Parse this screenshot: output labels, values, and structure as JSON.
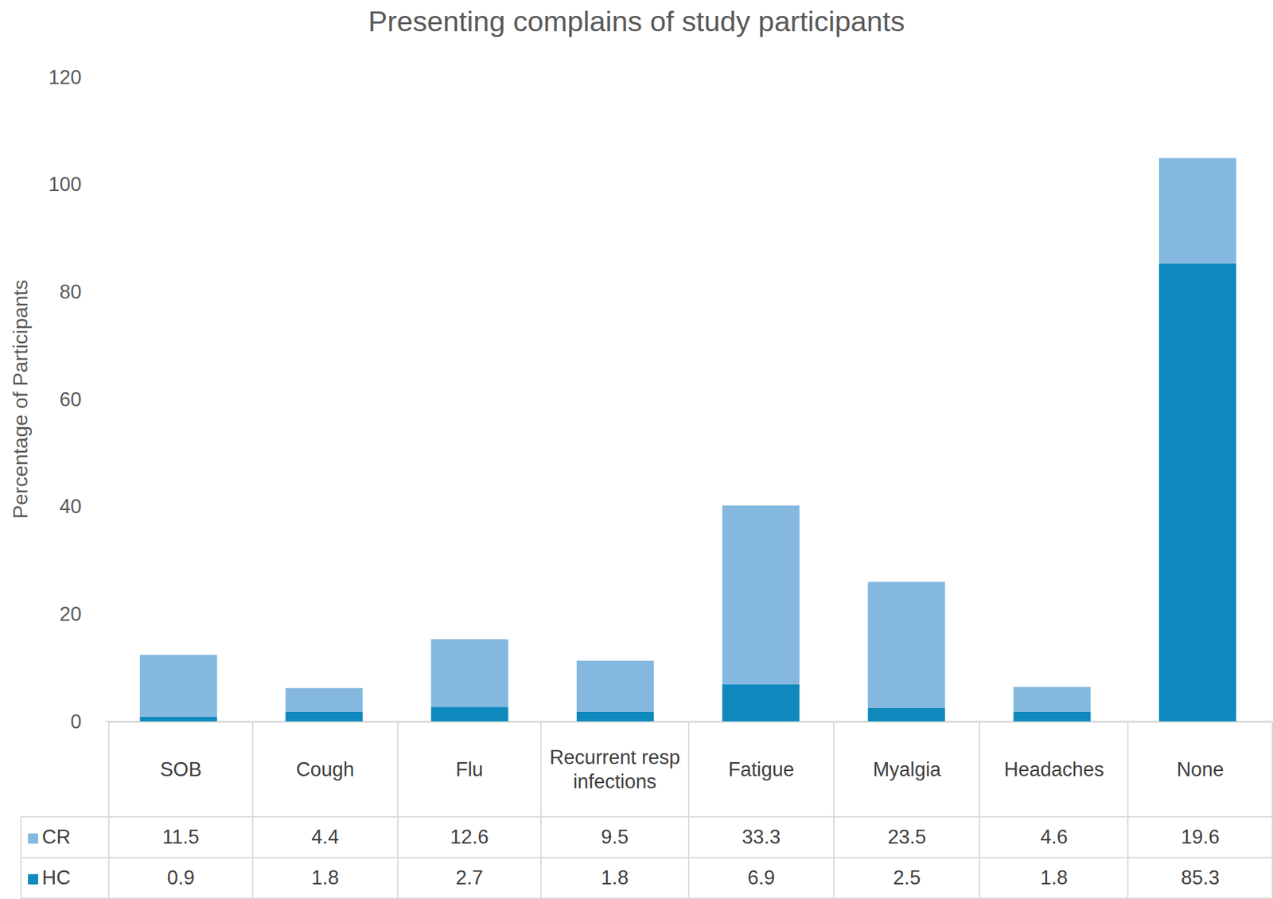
{
  "chart_data": {
    "type": "bar",
    "title": "Presenting complains of study participants",
    "y_label": "Percentage of Participants",
    "categories": [
      "SOB",
      "Cough",
      "Flu",
      "Recurrent resp infections",
      "Fatigue",
      "Myalgia",
      "Headaches",
      "None"
    ],
    "series": [
      {
        "name": "CR",
        "color": "#85b8df",
        "values": [
          11.5,
          4.4,
          12.6,
          9.5,
          33.3,
          23.5,
          4.6,
          19.6
        ]
      },
      {
        "name": "HC",
        "color": "#0f89bd",
        "values": [
          0.9,
          1.8,
          2.7,
          1.8,
          6.9,
          2.5,
          1.8,
          85.3
        ]
      }
    ],
    "ylim": [
      0,
      120
    ],
    "yticks": [
      0,
      20,
      40,
      60,
      80,
      100,
      120
    ],
    "stacked": true,
    "grid": false,
    "legend": "bottom"
  }
}
